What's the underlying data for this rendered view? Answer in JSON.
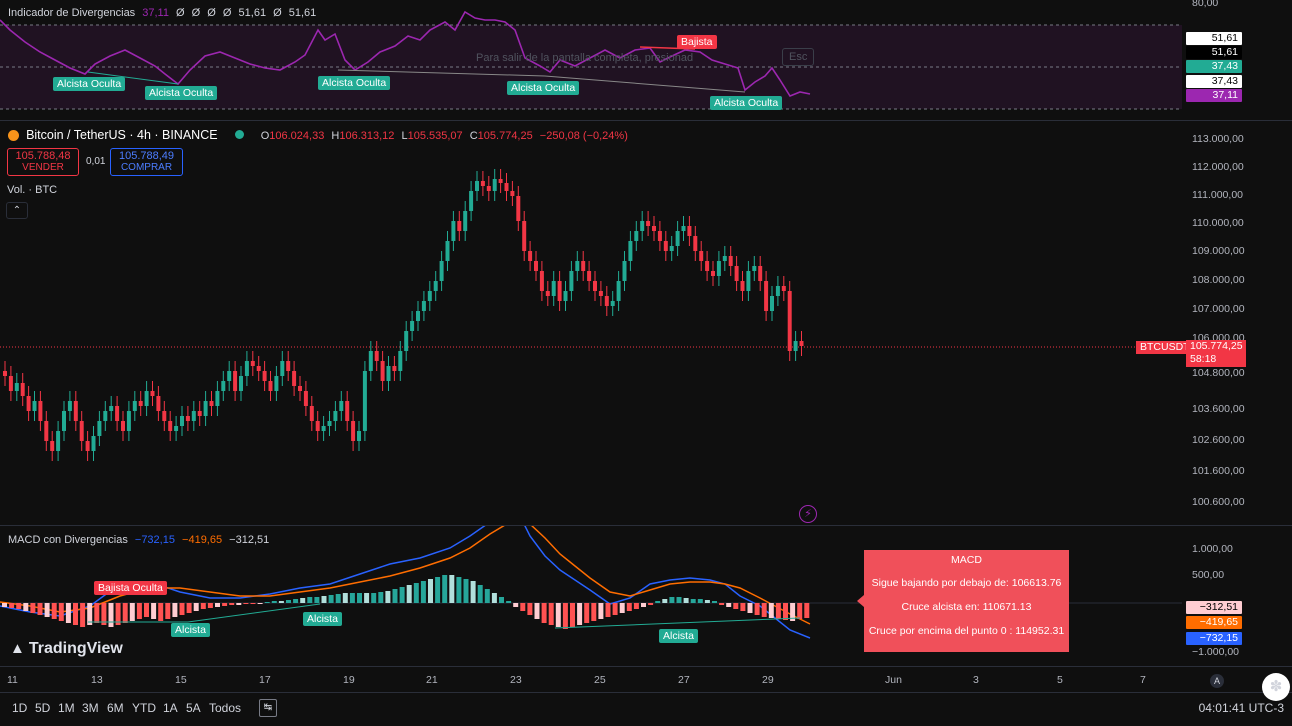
{
  "rsi_pane": {
    "title": "Indicador de Divergencias",
    "v1": "37,11",
    "v2": "Ø",
    "v3": "Ø",
    "v4": "Ø",
    "v5": "Ø",
    "v6": "51,61",
    "v7": "Ø",
    "v8": "51,61",
    "axis_top": "80,00",
    "axis_labels": [
      "51,61",
      "51,61",
      "37,43",
      "37,43",
      "37,11"
    ],
    "labels": [
      "Alcista Oculta",
      "Alcista Oculta",
      "Alcista Oculta",
      "Alcista Oculta",
      "Alcista Oculta",
      "Bajista"
    ],
    "overlay_hint": "Para salir de la pantalla completa, presionad",
    "overlay_key": "Esc"
  },
  "symbol": {
    "name": "Bitcoin / TetherUS · 4h · BINANCE",
    "o_label": "O",
    "o": "106.024,33",
    "h_label": "H",
    "h": "106.313,12",
    "l_label": "L",
    "l": "105.535,07",
    "c_label": "C",
    "c": "105.774,25",
    "chg": "−250,08 (−0,24%)",
    "sell_price": "105.788,48",
    "sell_label": "VENDER",
    "spread": "0,01",
    "buy_price": "105.788,49",
    "buy_label": "COMPRAR",
    "vol": "Vol. · BTC"
  },
  "price_axis": [
    "113.000,00",
    "112.000,00",
    "111.000,00",
    "110.000,00",
    "109.000,00",
    "108.000,00",
    "107.000,00",
    "106.000,00",
    "104.800,00",
    "103.600,00",
    "102.600,00",
    "101.600,00",
    "100.600,00"
  ],
  "last_price": {
    "ticker": "BTCUSDT",
    "price": "105.774,25",
    "countdown": "58:18"
  },
  "macd_pane": {
    "title": "MACD con Divergencias",
    "macd": "−732,15",
    "signal": "−419,65",
    "hist": "−312,51",
    "axis": [
      "1.000,00",
      "500,00",
      "−1.000,00"
    ],
    "tags": [
      "−312,51",
      "−419,65",
      "−732,15"
    ],
    "labels": [
      "Bajista Oculta",
      "Alcista",
      "Alcista",
      "Alcista"
    ]
  },
  "macd_popup": {
    "title": "MACD",
    "line1": "Sigue bajando por debajo de: 106613.76",
    "line2": "Cruce alcista en: 110671.13",
    "line3": "Cruce por encima del punto 0 : 114952.31"
  },
  "time_axis": [
    "11",
    "13",
    "15",
    "17",
    "19",
    "21",
    "23",
    "25",
    "27",
    "29",
    "Jun",
    "3",
    "5",
    "7"
  ],
  "timeframes": [
    "1D",
    "5D",
    "1M",
    "3M",
    "6M",
    "YTD",
    "1A",
    "5A",
    "Todos"
  ],
  "clock": "04:01:41 UTC-3",
  "brand": "TradingView",
  "colors": {
    "up": "#22ab94",
    "down": "#f23645",
    "rsi": "#9c27b0",
    "macd": "#2962ff",
    "signal": "#ff6d00"
  }
}
